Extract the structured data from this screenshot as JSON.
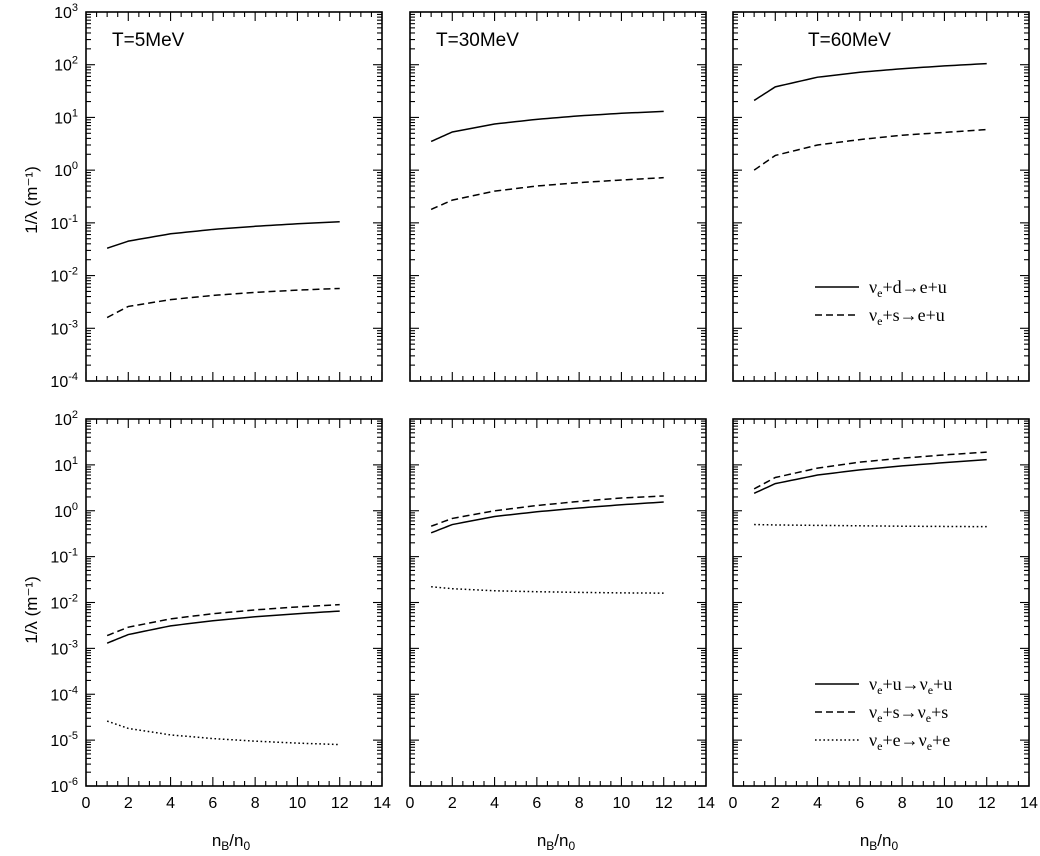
{
  "chart_data": [
    {
      "type": "line",
      "yscale": "log",
      "row": 0,
      "col": 0,
      "title": "T=5MeV",
      "ylabel": "1/λ (m⁻¹)",
      "xlabel": "",
      "xlim": [
        0,
        14
      ],
      "ylim_exp": [
        -4,
        3
      ],
      "xticks": [
        "0",
        "2",
        "4",
        "6",
        "8",
        "10",
        "12",
        "14"
      ],
      "yticks": [
        {
          "base": "10",
          "exp": "3"
        },
        {
          "base": "10",
          "exp": "2"
        },
        {
          "base": "10",
          "exp": "1"
        },
        {
          "base": "10",
          "exp": "0"
        },
        {
          "base": "10",
          "exp": "-1"
        },
        {
          "base": "10",
          "exp": "-2"
        },
        {
          "base": "10",
          "exp": "-3"
        },
        {
          "base": "10",
          "exp": "-4"
        }
      ],
      "series": [
        {
          "name": "νe+d→e+u",
          "style": "solid",
          "x": [
            1,
            2,
            4,
            6,
            8,
            10,
            12
          ],
          "y": [
            0.033,
            0.045,
            0.062,
            0.075,
            0.086,
            0.096,
            0.105
          ]
        },
        {
          "name": "νe+s→e+u",
          "style": "dashed",
          "x": [
            1,
            2,
            4,
            6,
            8,
            10,
            12
          ],
          "y": [
            0.0016,
            0.0026,
            0.0035,
            0.0042,
            0.0048,
            0.0053,
            0.0057
          ]
        }
      ]
    },
    {
      "type": "line",
      "yscale": "log",
      "row": 0,
      "col": 1,
      "title": "T=30MeV",
      "ylabel": "",
      "xlabel": "",
      "xlim": [
        0,
        14
      ],
      "ylim_exp": [
        -4,
        3
      ],
      "xticks": [
        "0",
        "2",
        "4",
        "6",
        "8",
        "10",
        "12",
        "14"
      ],
      "series": [
        {
          "name": "νe+d→e+u",
          "style": "solid",
          "x": [
            1,
            2,
            4,
            6,
            8,
            10,
            12
          ],
          "y": [
            3.5,
            5.3,
            7.5,
            9.2,
            10.7,
            12.0,
            13.0
          ]
        },
        {
          "name": "νe+s→e+u",
          "style": "dashed",
          "x": [
            1,
            2,
            4,
            6,
            8,
            10,
            12
          ],
          "y": [
            0.18,
            0.27,
            0.4,
            0.5,
            0.58,
            0.65,
            0.72
          ]
        }
      ]
    },
    {
      "type": "line",
      "yscale": "log",
      "row": 0,
      "col": 2,
      "title": "T=60MeV",
      "ylabel": "",
      "xlabel": "",
      "xlim": [
        0,
        14
      ],
      "ylim_exp": [
        -4,
        3
      ],
      "xticks": [
        "0",
        "2",
        "4",
        "6",
        "8",
        "10",
        "12",
        "14"
      ],
      "legend_position": "lower-right",
      "legend": [
        {
          "style": "solid",
          "parts": [
            "ν",
            "e",
            "+d→e+u"
          ]
        },
        {
          "style": "dashed",
          "parts": [
            "ν",
            "e",
            "+s→e+u"
          ]
        }
      ],
      "series": [
        {
          "name": "νe+d→e+u",
          "style": "solid",
          "x": [
            1,
            2,
            4,
            6,
            8,
            10,
            12
          ],
          "y": [
            21,
            38,
            58,
            72,
            84,
            95,
            105
          ]
        },
        {
          "name": "νe+s→e+u",
          "style": "dashed",
          "x": [
            1,
            2,
            4,
            6,
            8,
            10,
            12
          ],
          "y": [
            1.0,
            1.9,
            3.0,
            3.8,
            4.6,
            5.2,
            5.9
          ]
        }
      ]
    },
    {
      "type": "line",
      "yscale": "log",
      "row": 1,
      "col": 0,
      "title": "",
      "ylabel": "1/λ (m⁻¹)",
      "xlabel": "nB/n0",
      "xlim": [
        0,
        14
      ],
      "ylim_exp": [
        -6,
        2
      ],
      "xticks": [
        "0",
        "2",
        "4",
        "6",
        "8",
        "10",
        "12",
        "14"
      ],
      "yticks": [
        {
          "base": "10",
          "exp": "2"
        },
        {
          "base": "10",
          "exp": "1"
        },
        {
          "base": "10",
          "exp": "0"
        },
        {
          "base": "10",
          "exp": "-1"
        },
        {
          "base": "10",
          "exp": "-2"
        },
        {
          "base": "10",
          "exp": "-3"
        },
        {
          "base": "10",
          "exp": "-4"
        },
        {
          "base": "10",
          "exp": "-5"
        },
        {
          "base": "10",
          "exp": "-6"
        }
      ],
      "series": [
        {
          "name": "νe+u→νe+u",
          "style": "solid",
          "x": [
            1,
            2,
            4,
            6,
            8,
            10,
            12
          ],
          "y": [
            0.0013,
            0.002,
            0.0031,
            0.004,
            0.0049,
            0.0057,
            0.0065
          ]
        },
        {
          "name": "νe+s→νe+s",
          "style": "dashed",
          "x": [
            1,
            2,
            4,
            6,
            8,
            10,
            12
          ],
          "y": [
            0.0019,
            0.0029,
            0.0044,
            0.0057,
            0.0069,
            0.008,
            0.009
          ]
        },
        {
          "name": "νe+e→νe+e",
          "style": "dotted",
          "x": [
            1,
            2,
            4,
            6,
            8,
            10,
            12
          ],
          "y": [
            2.6e-05,
            1.8e-05,
            1.3e-05,
            1.08e-05,
            9.5e-06,
            8.6e-06,
            8e-06
          ]
        }
      ]
    },
    {
      "type": "line",
      "yscale": "log",
      "row": 1,
      "col": 1,
      "title": "",
      "ylabel": "",
      "xlabel": "nB/n0",
      "xlim": [
        0,
        14
      ],
      "ylim_exp": [
        -6,
        2
      ],
      "xticks": [
        "0",
        "2",
        "4",
        "6",
        "8",
        "10",
        "12",
        "14"
      ],
      "series": [
        {
          "name": "νe+u→νe+u",
          "style": "solid",
          "x": [
            1,
            2,
            4,
            6,
            8,
            10,
            12
          ],
          "y": [
            0.33,
            0.5,
            0.75,
            0.95,
            1.15,
            1.35,
            1.55
          ]
        },
        {
          "name": "νe+s→νe+s",
          "style": "dashed",
          "x": [
            1,
            2,
            4,
            6,
            8,
            10,
            12
          ],
          "y": [
            0.46,
            0.68,
            1.0,
            1.3,
            1.6,
            1.9,
            2.1
          ]
        },
        {
          "name": "νe+e→νe+e",
          "style": "dotted",
          "x": [
            1,
            2,
            4,
            6,
            8,
            10,
            12
          ],
          "y": [
            0.022,
            0.02,
            0.018,
            0.0172,
            0.0166,
            0.0162,
            0.016
          ]
        }
      ]
    },
    {
      "type": "line",
      "yscale": "log",
      "row": 1,
      "col": 2,
      "title": "",
      "ylabel": "",
      "xlabel": "nB/n0",
      "xlim": [
        0,
        14
      ],
      "ylim_exp": [
        -6,
        2
      ],
      "xticks": [
        "0",
        "2",
        "4",
        "6",
        "8",
        "10",
        "12",
        "14"
      ],
      "legend_position": "lower-right",
      "legend": [
        {
          "style": "solid",
          "parts": [
            "ν",
            "e",
            "+u→",
            "ν",
            "e",
            "+u"
          ]
        },
        {
          "style": "dashed",
          "parts": [
            "ν",
            "e",
            "+s→",
            "ν",
            "e",
            "+s"
          ]
        },
        {
          "style": "dotted",
          "parts": [
            "ν",
            "e",
            "+e→",
            "ν",
            "e",
            "+e"
          ]
        }
      ],
      "series": [
        {
          "name": "νe+u→νe+u",
          "style": "solid",
          "x": [
            1,
            2,
            4,
            6,
            8,
            10,
            12
          ],
          "y": [
            2.4,
            3.9,
            6.0,
            7.8,
            9.5,
            11.2,
            13.0
          ]
        },
        {
          "name": "νe+s→νe+s",
          "style": "dashed",
          "x": [
            1,
            2,
            4,
            6,
            8,
            10,
            12
          ],
          "y": [
            3.0,
            5.3,
            8.5,
            11.5,
            14.0,
            16.5,
            19.0
          ]
        },
        {
          "name": "νe+e→νe+e",
          "style": "dotted",
          "x": [
            1,
            2,
            4,
            6,
            8,
            10,
            12
          ],
          "y": [
            0.5,
            0.49,
            0.48,
            0.47,
            0.46,
            0.455,
            0.45
          ]
        }
      ]
    }
  ],
  "labels": {
    "ylabel_top": "1/λ (m⁻¹)",
    "ylabel_bottom": "1/λ (m⁻¹)",
    "xlabel_main": "n",
    "xlabel_sub1": "B",
    "xlabel_mid": "/n",
    "xlabel_sub2": "0"
  }
}
